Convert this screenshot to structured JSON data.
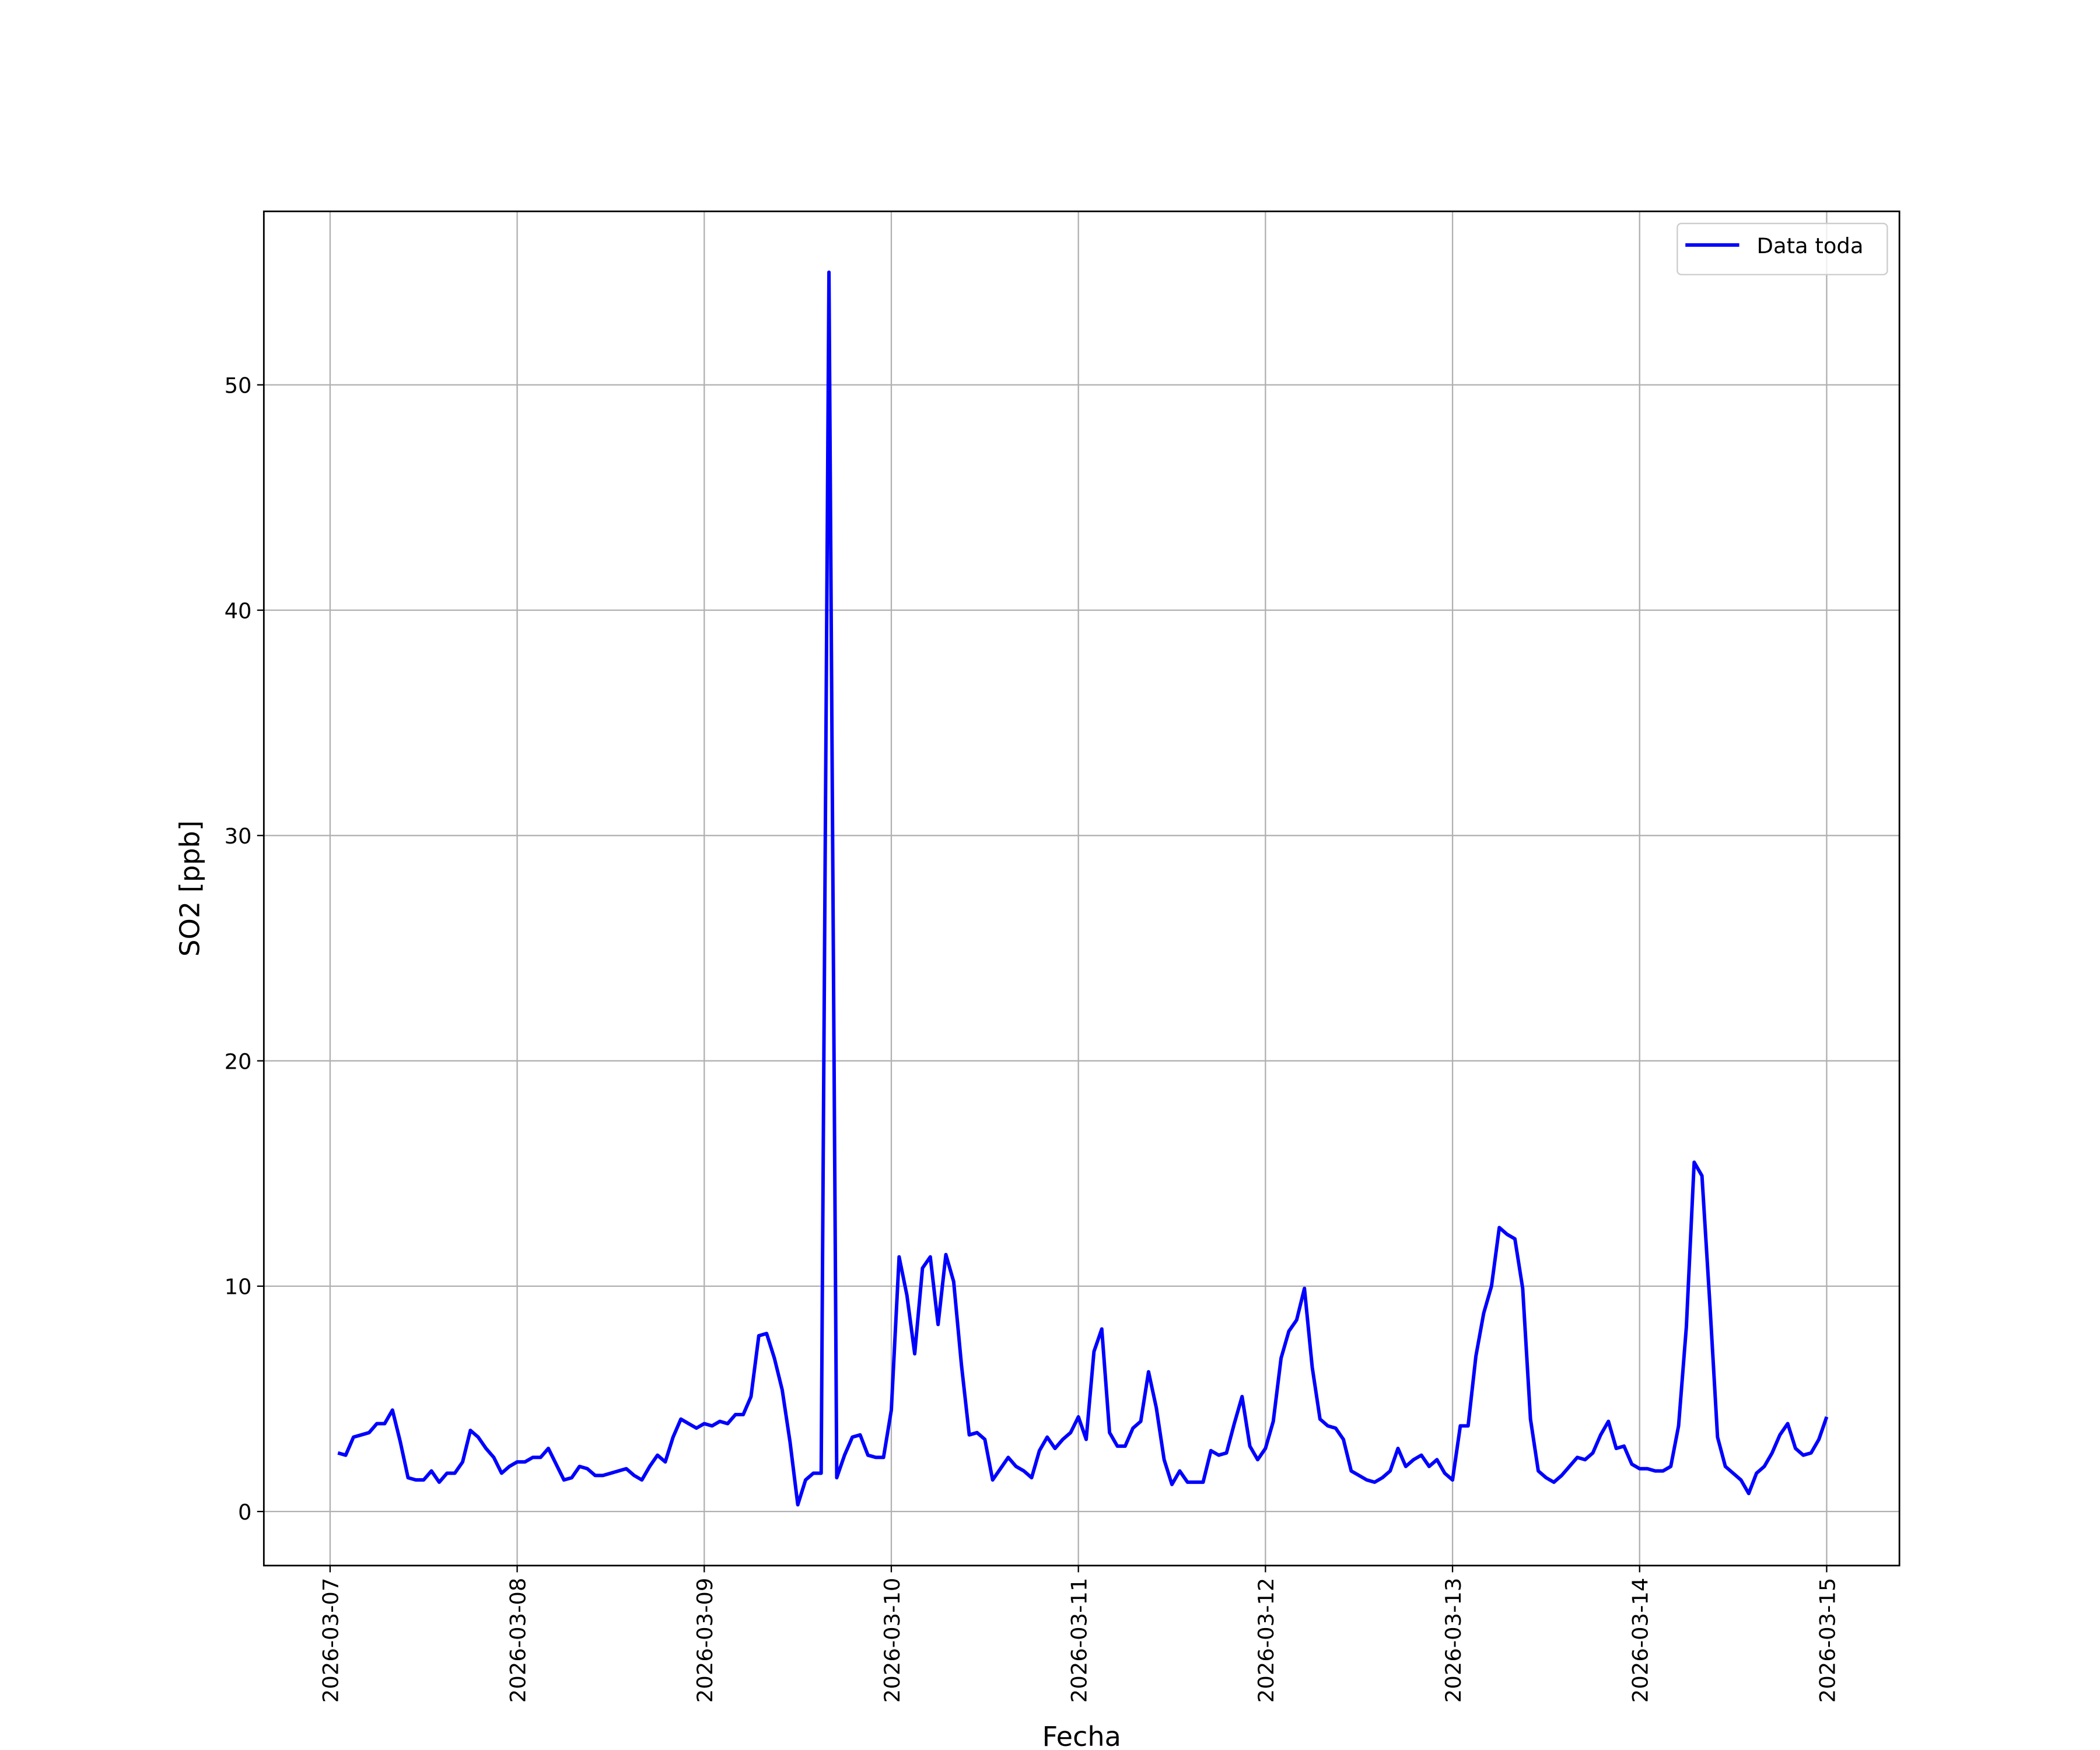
{
  "chart_data": {
    "type": "line",
    "xlabel": "Fecha",
    "ylabel": "SO2 [ppb]",
    "x": [
      "2026-03-07 01:00",
      "2026-03-07 02:00",
      "2026-03-07 03:00",
      "2026-03-07 04:00",
      "2026-03-07 05:00",
      "2026-03-07 06:00",
      "2026-03-07 07:00",
      "2026-03-07 08:00",
      "2026-03-07 09:00",
      "2026-03-07 10:00",
      "2026-03-07 11:00",
      "2026-03-07 12:00",
      "2026-03-07 13:00",
      "2026-03-07 14:00",
      "2026-03-07 15:00",
      "2026-03-07 16:00",
      "2026-03-07 17:00",
      "2026-03-07 18:00",
      "2026-03-07 19:00",
      "2026-03-07 20:00",
      "2026-03-07 21:00",
      "2026-03-07 22:00",
      "2026-03-07 23:00",
      "2026-03-08 00:00",
      "2026-03-08 01:00",
      "2026-03-08 02:00",
      "2026-03-08 03:00",
      "2026-03-08 04:00",
      "2026-03-08 05:00",
      "2026-03-08 06:00",
      "2026-03-08 07:00",
      "2026-03-08 08:00",
      "2026-03-08 09:00",
      "2026-03-08 10:00",
      "2026-03-08 11:00",
      "2026-03-08 12:00",
      "2026-03-08 13:00",
      "2026-03-08 14:00",
      "2026-03-08 15:00",
      "2026-03-08 16:00",
      "2026-03-08 17:00",
      "2026-03-08 18:00",
      "2026-03-08 19:00",
      "2026-03-08 20:00",
      "2026-03-08 21:00",
      "2026-03-08 22:00",
      "2026-03-08 23:00",
      "2026-03-09 00:00",
      "2026-03-09 01:00",
      "2026-03-09 02:00",
      "2026-03-09 03:00",
      "2026-03-09 04:00",
      "2026-03-09 05:00",
      "2026-03-09 06:00",
      "2026-03-09 07:00",
      "2026-03-09 08:00",
      "2026-03-09 09:00",
      "2026-03-09 10:00",
      "2026-03-09 11:00",
      "2026-03-09 12:00",
      "2026-03-09 13:00",
      "2026-03-09 14:00",
      "2026-03-09 15:00",
      "2026-03-09 16:00",
      "2026-03-09 17:00",
      "2026-03-09 18:00",
      "2026-03-09 19:00",
      "2026-03-09 20:00",
      "2026-03-09 21:00",
      "2026-03-09 22:00",
      "2026-03-09 23:00",
      "2026-03-10 00:00",
      "2026-03-10 01:00",
      "2026-03-10 02:00",
      "2026-03-10 03:00",
      "2026-03-10 04:00",
      "2026-03-10 05:00",
      "2026-03-10 06:00",
      "2026-03-10 07:00",
      "2026-03-10 08:00",
      "2026-03-10 09:00",
      "2026-03-10 10:00",
      "2026-03-10 11:00",
      "2026-03-10 12:00",
      "2026-03-10 13:00",
      "2026-03-10 14:00",
      "2026-03-10 15:00",
      "2026-03-10 16:00",
      "2026-03-10 17:00",
      "2026-03-10 18:00",
      "2026-03-10 19:00",
      "2026-03-10 20:00",
      "2026-03-10 21:00",
      "2026-03-10 22:00",
      "2026-03-10 23:00",
      "2026-03-11 00:00",
      "2026-03-11 01:00",
      "2026-03-11 02:00",
      "2026-03-11 03:00",
      "2026-03-11 04:00",
      "2026-03-11 05:00",
      "2026-03-11 06:00",
      "2026-03-11 07:00",
      "2026-03-11 08:00",
      "2026-03-11 09:00",
      "2026-03-11 10:00",
      "2026-03-11 11:00",
      "2026-03-11 12:00",
      "2026-03-11 13:00",
      "2026-03-11 14:00",
      "2026-03-11 15:00",
      "2026-03-11 16:00",
      "2026-03-11 17:00",
      "2026-03-11 18:00",
      "2026-03-11 19:00",
      "2026-03-11 20:00",
      "2026-03-11 21:00",
      "2026-03-11 22:00",
      "2026-03-11 23:00",
      "2026-03-12 00:00",
      "2026-03-12 01:00",
      "2026-03-12 02:00",
      "2026-03-12 03:00",
      "2026-03-12 04:00",
      "2026-03-12 05:00",
      "2026-03-12 06:00",
      "2026-03-12 07:00",
      "2026-03-12 08:00",
      "2026-03-12 09:00",
      "2026-03-12 10:00",
      "2026-03-12 11:00",
      "2026-03-12 12:00",
      "2026-03-12 13:00",
      "2026-03-12 14:00",
      "2026-03-12 15:00",
      "2026-03-12 16:00",
      "2026-03-12 17:00",
      "2026-03-12 18:00",
      "2026-03-12 19:00",
      "2026-03-12 20:00",
      "2026-03-12 21:00",
      "2026-03-12 22:00",
      "2026-03-12 23:00",
      "2026-03-13 00:00",
      "2026-03-13 01:00",
      "2026-03-13 02:00",
      "2026-03-13 03:00",
      "2026-03-13 04:00",
      "2026-03-13 05:00",
      "2026-03-13 06:00",
      "2026-03-13 07:00",
      "2026-03-13 08:00",
      "2026-03-13 09:00",
      "2026-03-13 10:00",
      "2026-03-13 11:00",
      "2026-03-13 12:00",
      "2026-03-13 13:00",
      "2026-03-13 14:00",
      "2026-03-13 15:00",
      "2026-03-13 16:00",
      "2026-03-13 17:00",
      "2026-03-13 18:00",
      "2026-03-13 19:00",
      "2026-03-13 20:00",
      "2026-03-13 21:00",
      "2026-03-13 22:00",
      "2026-03-13 23:00",
      "2026-03-14 00:00",
      "2026-03-14 01:00",
      "2026-03-14 02:00",
      "2026-03-14 03:00",
      "2026-03-14 04:00",
      "2026-03-14 05:00",
      "2026-03-14 06:00",
      "2026-03-14 07:00",
      "2026-03-14 08:00",
      "2026-03-14 09:00",
      "2026-03-14 10:00",
      "2026-03-14 11:00",
      "2026-03-14 12:00",
      "2026-03-14 13:00",
      "2026-03-14 14:00",
      "2026-03-14 15:00",
      "2026-03-14 16:00",
      "2026-03-14 17:00",
      "2026-03-14 18:00",
      "2026-03-14 19:00",
      "2026-03-14 20:00",
      "2026-03-14 21:00",
      "2026-03-14 22:00",
      "2026-03-14 23:00",
      "2026-03-15 00:00"
    ],
    "series": [
      {
        "name": "Data toda",
        "color": "#0000ff",
        "values": [
          2.6,
          2.5,
          3.3,
          3.4,
          3.5,
          3.9,
          3.9,
          4.5,
          3.1,
          1.5,
          1.4,
          1.4,
          1.8,
          1.3,
          1.7,
          1.7,
          2.2,
          3.6,
          3.3,
          2.8,
          2.4,
          1.7,
          2.0,
          2.2,
          2.2,
          2.4,
          2.4,
          2.8,
          2.1,
          1.4,
          1.5,
          2.0,
          1.9,
          1.6,
          1.6,
          1.7,
          1.8,
          1.9,
          1.6,
          1.4,
          2.0,
          2.5,
          2.2,
          3.3,
          4.1,
          3.9,
          3.7,
          3.9,
          3.8,
          4.0,
          3.9,
          4.3,
          4.3,
          5.1,
          7.8,
          7.9,
          6.8,
          5.4,
          3.1,
          0.3,
          1.4,
          1.7,
          1.7,
          55.0,
          1.5,
          2.5,
          3.3,
          3.4,
          2.5,
          2.4,
          2.4,
          4.5,
          11.3,
          9.6,
          7.0,
          10.8,
          11.3,
          8.3,
          11.4,
          10.2,
          6.5,
          3.4,
          3.5,
          3.2,
          1.4,
          1.9,
          2.4,
          2.0,
          1.8,
          1.5,
          2.7,
          3.3,
          2.8,
          3.2,
          3.5,
          4.2,
          3.2,
          7.1,
          8.1,
          3.5,
          2.9,
          2.9,
          3.7,
          4.0,
          6.2,
          4.6,
          2.3,
          1.2,
          1.8,
          1.3,
          1.3,
          1.3,
          2.7,
          2.5,
          2.6,
          3.9,
          5.1,
          2.9,
          2.3,
          2.8,
          4.0,
          6.8,
          8.0,
          8.5,
          9.9,
          6.4,
          4.1,
          3.8,
          3.7,
          3.2,
          1.8,
          1.6,
          1.4,
          1.3,
          1.5,
          1.8,
          2.8,
          2.0,
          2.3,
          2.5,
          2.0,
          2.3,
          1.7,
          1.4,
          3.8,
          3.8,
          6.9,
          8.8,
          10.0,
          12.6,
          12.3,
          12.1,
          9.9,
          4.1,
          1.8,
          1.5,
          1.3,
          1.6,
          2.0,
          2.4,
          2.3,
          2.6,
          3.4,
          4.0,
          2.8,
          2.9,
          2.1,
          1.9,
          1.9,
          1.8,
          1.8,
          2.0,
          3.8,
          8.2,
          15.5,
          14.9,
          9.3,
          3.3,
          2.0,
          1.7,
          1.4,
          0.8,
          1.7,
          2.0,
          2.6,
          3.4,
          3.9,
          2.8,
          2.5,
          2.6,
          3.2,
          4.2
        ]
      }
    ],
    "xlim": [
      "2026-03-06 15:30",
      "2026-03-15 09:20"
    ],
    "xticks": [
      "2026-03-07",
      "2026-03-08",
      "2026-03-09",
      "2026-03-10",
      "2026-03-11",
      "2026-03-12",
      "2026-03-13",
      "2026-03-14",
      "2026-03-15"
    ],
    "ylim": [
      -2.4,
      57.7
    ],
    "yticks": [
      0,
      10,
      20,
      30,
      40,
      50
    ],
    "grid": true,
    "legend": "upper right"
  }
}
